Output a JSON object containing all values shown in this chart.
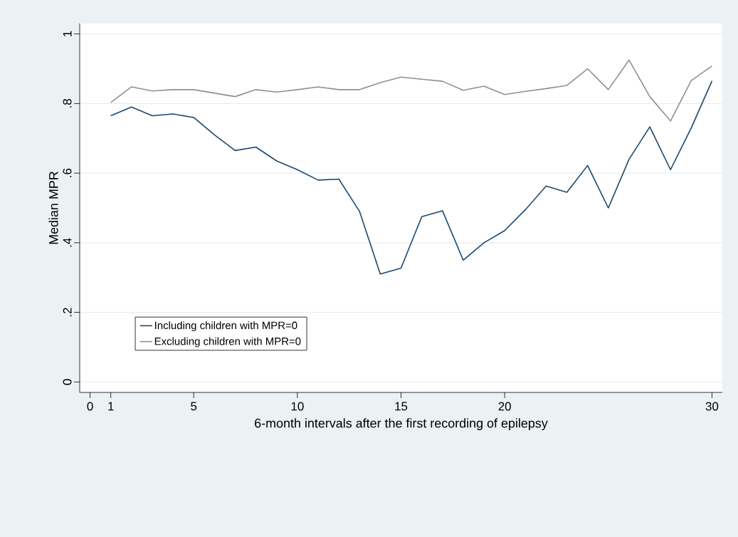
{
  "chart_data": {
    "type": "line",
    "xlabel": "6-month intervals after the first recording of epilepsy",
    "ylabel": "Median MPR",
    "x": [
      1,
      2,
      3,
      4,
      5,
      6,
      7,
      8,
      9,
      10,
      11,
      12,
      13,
      14,
      15,
      16,
      17,
      18,
      19,
      20,
      21,
      22,
      23,
      24,
      25,
      26,
      27,
      28,
      29,
      30
    ],
    "series": [
      {
        "name": "Including children with MPR=0",
        "color": "#1a476f",
        "values": [
          0.765,
          0.79,
          0.765,
          0.77,
          0.76,
          0.71,
          0.665,
          0.675,
          0.635,
          0.61,
          0.58,
          0.583,
          0.49,
          0.31,
          0.327,
          0.475,
          0.492,
          0.35,
          0.4,
          0.435,
          0.495,
          0.563,
          0.545,
          0.622,
          0.5,
          0.64,
          0.733,
          0.61,
          0.73,
          0.865
        ]
      },
      {
        "name": "Excluding children with MPR=0",
        "color": "#909090",
        "values": [
          0.803,
          0.848,
          0.836,
          0.84,
          0.84,
          0.83,
          0.82,
          0.84,
          0.833,
          0.84,
          0.848,
          0.84,
          0.84,
          0.86,
          0.876,
          0.87,
          0.864,
          0.838,
          0.85,
          0.826,
          0.835,
          0.843,
          0.852,
          0.9,
          0.84,
          0.925,
          0.82,
          0.75,
          0.866,
          0.908
        ]
      }
    ],
    "xlim": [
      -0.5,
      30.5
    ],
    "ylim": [
      -0.03,
      1.03
    ],
    "xticks": [
      0,
      1,
      5,
      10,
      15,
      20,
      30
    ],
    "yticks": [
      0,
      {
        "value": 0.2,
        "label": ".2"
      },
      {
        "value": 0.4,
        "label": ".4"
      },
      {
        "value": 0.6,
        "label": ".6"
      },
      {
        "value": 0.8,
        "label": ".8"
      },
      1
    ],
    "grid": "y",
    "legend": "bottom left"
  }
}
